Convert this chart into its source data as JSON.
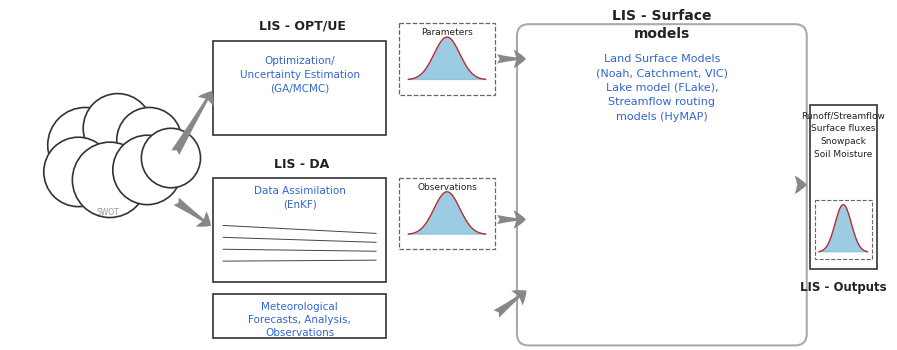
{
  "bg_color": "#ffffff",
  "blue_text_color": "#3366CC",
  "dark_text_color": "#222222",
  "arrow_color": "#888888",
  "labels": {
    "lis_opt_ue": "LIS - OPT/UE",
    "opt_box": "Optimization/\nUncertainty Estimation\n(GA/MCMC)",
    "params_label": "Parameters",
    "lis_da": "LIS - DA",
    "da_box": "Data Assimilation\n(EnKF)",
    "obs_label": "Observations",
    "met_box": "Meteorological\nForecasts, Analysis,\nObservations",
    "lis_surface": "LIS - Surface\nmodels",
    "surface_text": "Land Surface Models\n(Noah, Catchment, VIC)\nLake model (FLake),\nStreamflow routing\nmodels (HyMAP)",
    "outputs_box": "Runoff/Streamflow\nSurface fluxes\nSnowpack\nSoil Moisture",
    "lis_outputs": "LIS - Outputs",
    "swot_label": "SWOT"
  }
}
